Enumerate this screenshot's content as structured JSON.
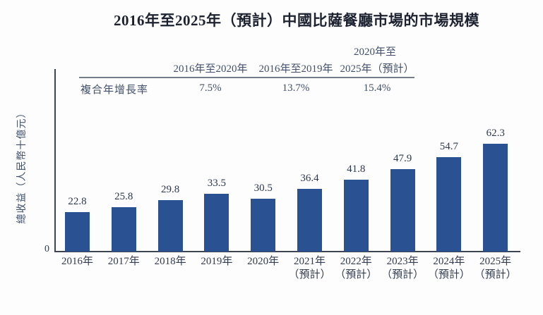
{
  "title": "2016年至2025年（預計）中國比薩餐廳市場的市場規模",
  "cagr_table": {
    "row_label": "複合年增長率",
    "columns": [
      {
        "header": "2016年至2020年",
        "value": "7.5%"
      },
      {
        "header": "2016年至2019年",
        "value": "13.7%"
      },
      {
        "header_line1": "2020年至",
        "header": "2025年（預計）",
        "value": "15.4%"
      }
    ]
  },
  "chart_data": {
    "type": "bar",
    "title": "2016年至2025年（預計）中國比薩餐廳市場的市場規模",
    "xlabel": "",
    "ylabel": "總收益（人民幣十億元）",
    "y_origin_label": "0",
    "ylim": [
      0,
      105
    ],
    "grid": false,
    "legend_position": "none",
    "value_labels_shown": true,
    "bar_color": "#2a5191",
    "categories": [
      "2016年",
      "2017年",
      "2018年",
      "2019年",
      "2020年",
      "2021年\n（預計）",
      "2022年\n（預計）",
      "2023年\n（預計）",
      "2024年\n（預計）",
      "2025年\n（預計）"
    ],
    "values": [
      22.8,
      25.8,
      29.8,
      33.5,
      30.5,
      36.4,
      41.8,
      47.9,
      54.7,
      62.3
    ],
    "annotations": {
      "cagr_2016_2020": "7.5%",
      "cagr_2016_2019": "13.7%",
      "cagr_2020_2025_forecast": "15.4%"
    }
  }
}
